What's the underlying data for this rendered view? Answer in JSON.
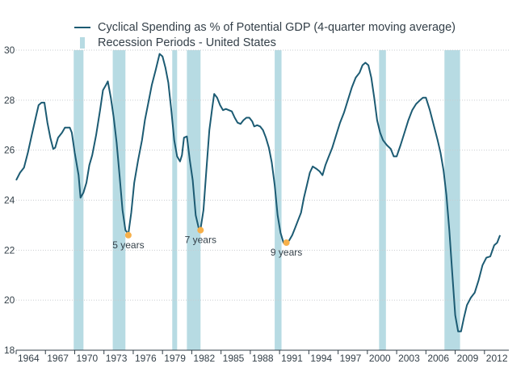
{
  "chart_data": {
    "type": "line",
    "legend": [
      {
        "label": "Cyclical Spending as % of Potential GDP (4-quarter moving average)",
        "kind": "line",
        "color": "#1c5b73"
      },
      {
        "label": "Recession Periods - United States",
        "kind": "box",
        "color": "#b7dbe3"
      }
    ],
    "legend_placement": "top",
    "xlim": [
      1964.0,
      2014.5
    ],
    "ylim": [
      18,
      30
    ],
    "x_ticks": [
      1964,
      1967,
      1970,
      1973,
      1976,
      1979,
      1982,
      1985,
      1988,
      1991,
      1994,
      1997,
      2000,
      2003,
      2006,
      2009,
      2012
    ],
    "y_ticks": [
      18,
      20,
      22,
      24,
      26,
      28,
      30
    ],
    "grid": "horizontal",
    "recessions": [
      [
        1969.9,
        1970.9
      ],
      [
        1973.9,
        1975.2
      ],
      [
        1980.0,
        1980.5
      ],
      [
        1981.5,
        1982.9
      ],
      [
        1990.5,
        1991.2
      ],
      [
        2001.2,
        2001.9
      ],
      [
        2007.9,
        2009.5
      ]
    ],
    "series": [
      {
        "name": "Cyclical Spending as % of Potential GDP (4-quarter moving average)",
        "color": "#1c5b73",
        "points": [
          [
            1964.0,
            24.8
          ],
          [
            1964.4,
            25.1
          ],
          [
            1964.8,
            25.3
          ],
          [
            1965.2,
            25.9
          ],
          [
            1965.6,
            26.6
          ],
          [
            1966.0,
            27.3
          ],
          [
            1966.3,
            27.8
          ],
          [
            1966.6,
            27.9
          ],
          [
            1966.9,
            27.9
          ],
          [
            1967.2,
            27.1
          ],
          [
            1967.5,
            26.5
          ],
          [
            1967.8,
            26.05
          ],
          [
            1968.0,
            26.1
          ],
          [
            1968.3,
            26.5
          ],
          [
            1968.7,
            26.7
          ],
          [
            1969.0,
            26.9
          ],
          [
            1969.5,
            26.9
          ],
          [
            1969.7,
            26.7
          ],
          [
            1970.0,
            25.9
          ],
          [
            1970.4,
            25.0
          ],
          [
            1970.6,
            24.1
          ],
          [
            1970.9,
            24.3
          ],
          [
            1971.2,
            24.7
          ],
          [
            1971.5,
            25.4
          ],
          [
            1971.8,
            25.8
          ],
          [
            1972.2,
            26.6
          ],
          [
            1972.6,
            27.6
          ],
          [
            1972.9,
            28.4
          ],
          [
            1973.2,
            28.6
          ],
          [
            1973.4,
            28.75
          ],
          [
            1973.7,
            28.1
          ],
          [
            1974.0,
            27.3
          ],
          [
            1974.3,
            26.3
          ],
          [
            1974.6,
            25.0
          ],
          [
            1974.9,
            23.6
          ],
          [
            1975.2,
            22.8
          ],
          [
            1975.5,
            22.65
          ],
          [
            1975.8,
            23.5
          ],
          [
            1976.1,
            24.7
          ],
          [
            1976.5,
            25.6
          ],
          [
            1976.9,
            26.4
          ],
          [
            1977.2,
            27.2
          ],
          [
            1977.6,
            28.0
          ],
          [
            1977.9,
            28.6
          ],
          [
            1978.3,
            29.2
          ],
          [
            1978.7,
            29.85
          ],
          [
            1979.0,
            29.75
          ],
          [
            1979.3,
            29.3
          ],
          [
            1979.6,
            28.7
          ],
          [
            1979.9,
            27.6
          ],
          [
            1980.2,
            26.4
          ],
          [
            1980.5,
            25.75
          ],
          [
            1980.8,
            25.55
          ],
          [
            1981.0,
            25.8
          ],
          [
            1981.2,
            26.5
          ],
          [
            1981.5,
            26.55
          ],
          [
            1981.8,
            25.6
          ],
          [
            1982.1,
            24.8
          ],
          [
            1982.4,
            23.4
          ],
          [
            1982.7,
            22.9
          ],
          [
            1982.9,
            22.85
          ],
          [
            1983.2,
            23.6
          ],
          [
            1983.5,
            25.2
          ],
          [
            1983.8,
            26.8
          ],
          [
            1984.1,
            27.7
          ],
          [
            1984.3,
            28.25
          ],
          [
            1984.6,
            28.1
          ],
          [
            1984.9,
            27.8
          ],
          [
            1985.2,
            27.6
          ],
          [
            1985.5,
            27.65
          ],
          [
            1985.8,
            27.6
          ],
          [
            1986.1,
            27.55
          ],
          [
            1986.4,
            27.3
          ],
          [
            1986.7,
            27.1
          ],
          [
            1987.0,
            27.05
          ],
          [
            1987.3,
            27.2
          ],
          [
            1987.6,
            27.3
          ],
          [
            1987.9,
            27.3
          ],
          [
            1988.2,
            27.15
          ],
          [
            1988.4,
            26.95
          ],
          [
            1988.7,
            27.0
          ],
          [
            1989.0,
            26.95
          ],
          [
            1989.3,
            26.8
          ],
          [
            1989.6,
            26.5
          ],
          [
            1989.9,
            26.1
          ],
          [
            1990.2,
            25.5
          ],
          [
            1990.5,
            24.6
          ],
          [
            1990.8,
            23.4
          ],
          [
            1991.1,
            22.7
          ],
          [
            1991.4,
            22.3
          ],
          [
            1991.7,
            22.25
          ],
          [
            1992.0,
            22.4
          ],
          [
            1992.3,
            22.6
          ],
          [
            1992.6,
            22.9
          ],
          [
            1992.9,
            23.2
          ],
          [
            1993.2,
            23.5
          ],
          [
            1993.5,
            24.1
          ],
          [
            1993.8,
            24.6
          ],
          [
            1994.1,
            25.1
          ],
          [
            1994.4,
            25.35
          ],
          [
            1994.8,
            25.25
          ],
          [
            1995.1,
            25.15
          ],
          [
            1995.4,
            25.0
          ],
          [
            1995.7,
            25.4
          ],
          [
            1996.0,
            25.7
          ],
          [
            1996.4,
            26.1
          ],
          [
            1996.8,
            26.6
          ],
          [
            1997.2,
            27.1
          ],
          [
            1997.6,
            27.5
          ],
          [
            1998.0,
            28.0
          ],
          [
            1998.4,
            28.5
          ],
          [
            1998.8,
            28.9
          ],
          [
            1999.2,
            29.1
          ],
          [
            1999.5,
            29.4
          ],
          [
            1999.8,
            29.5
          ],
          [
            2000.1,
            29.4
          ],
          [
            2000.4,
            28.9
          ],
          [
            2000.7,
            28.1
          ],
          [
            2001.0,
            27.2
          ],
          [
            2001.3,
            26.7
          ],
          [
            2001.6,
            26.4
          ],
          [
            2002.0,
            26.2
          ],
          [
            2002.4,
            26.05
          ],
          [
            2002.7,
            25.75
          ],
          [
            2003.0,
            25.75
          ],
          [
            2003.4,
            26.2
          ],
          [
            2003.8,
            26.7
          ],
          [
            2004.2,
            27.2
          ],
          [
            2004.6,
            27.6
          ],
          [
            2005.0,
            27.85
          ],
          [
            2005.4,
            28.0
          ],
          [
            2005.7,
            28.1
          ],
          [
            2006.0,
            28.1
          ],
          [
            2006.4,
            27.6
          ],
          [
            2006.8,
            27.0
          ],
          [
            2007.2,
            26.4
          ],
          [
            2007.5,
            25.9
          ],
          [
            2007.8,
            25.2
          ],
          [
            2008.1,
            24.2
          ],
          [
            2008.4,
            22.8
          ],
          [
            2008.7,
            21.1
          ],
          [
            2009.0,
            19.4
          ],
          [
            2009.3,
            18.75
          ],
          [
            2009.6,
            18.75
          ],
          [
            2009.9,
            19.3
          ],
          [
            2010.2,
            19.8
          ],
          [
            2010.6,
            20.1
          ],
          [
            2011.0,
            20.3
          ],
          [
            2011.4,
            20.8
          ],
          [
            2011.8,
            21.4
          ],
          [
            2012.2,
            21.7
          ],
          [
            2012.6,
            21.75
          ],
          [
            2013.0,
            22.2
          ],
          [
            2013.3,
            22.3
          ],
          [
            2013.6,
            22.6
          ]
        ]
      }
    ],
    "annotations": [
      {
        "x": 1975.5,
        "y": 22.6,
        "label": "5 years",
        "color": "#f7b04a"
      },
      {
        "x": 1982.9,
        "y": 22.8,
        "label": "7 years",
        "color": "#f7b04a"
      },
      {
        "x": 1991.7,
        "y": 22.3,
        "label": "9 years",
        "color": "#f7b04a"
      }
    ]
  }
}
